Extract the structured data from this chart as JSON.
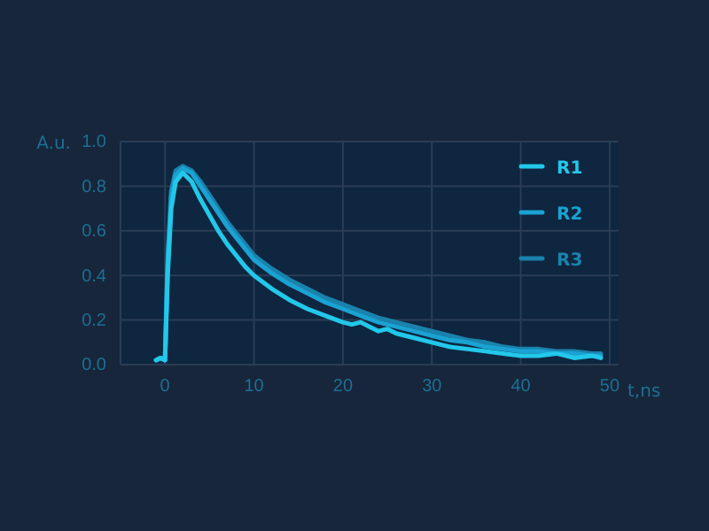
{
  "chart_data": {
    "type": "line",
    "xlabel": "t,ns",
    "ylabel": "A.u.",
    "xlim": [
      -5,
      51
    ],
    "ylim": [
      0,
      1
    ],
    "xticks": [
      0,
      10,
      20,
      30,
      40,
      50
    ],
    "yticks": [
      {
        "value": 0,
        "label": "0.0"
      },
      {
        "value": 0.2,
        "label": "0.2"
      },
      {
        "value": 0.4,
        "label": "0.4"
      },
      {
        "value": 0.6,
        "label": "0.6"
      },
      {
        "value": 0.8,
        "label": "0.8"
      },
      {
        "value": 1,
        "label": "1.0"
      }
    ],
    "grid": true,
    "legend": "top right",
    "line_style": "solid",
    "series": [
      {
        "name": "R1",
        "color": "#22c8ea",
        "x": [
          -1,
          -0.5,
          0,
          0.3,
          0.7,
          1.2,
          2,
          3,
          4,
          5,
          6,
          7,
          8,
          9,
          10,
          12,
          14,
          16,
          18,
          20,
          21,
          22,
          23,
          24,
          25,
          26,
          28,
          30,
          32,
          34,
          36,
          38,
          40,
          42,
          44,
          46,
          48,
          49
        ],
        "values": [
          0.02,
          0.03,
          0.02,
          0.4,
          0.7,
          0.82,
          0.86,
          0.82,
          0.74,
          0.67,
          0.6,
          0.54,
          0.49,
          0.44,
          0.4,
          0.34,
          0.29,
          0.25,
          0.22,
          0.19,
          0.18,
          0.19,
          0.17,
          0.15,
          0.16,
          0.14,
          0.12,
          0.1,
          0.08,
          0.07,
          0.06,
          0.05,
          0.04,
          0.04,
          0.05,
          0.03,
          0.04,
          0.03
        ]
      },
      {
        "name": "R2",
        "color": "#1aa2d2",
        "x": [
          -1,
          -0.5,
          0,
          0.3,
          0.7,
          1.2,
          2,
          3,
          4,
          5,
          6,
          7,
          8,
          9,
          10,
          12,
          14,
          16,
          18,
          20,
          22,
          24,
          26,
          28,
          30,
          32,
          34,
          36,
          38,
          40,
          42,
          44,
          46,
          48,
          49
        ],
        "values": [
          0.02,
          0.03,
          0.02,
          0.45,
          0.75,
          0.85,
          0.88,
          0.86,
          0.8,
          0.74,
          0.68,
          0.62,
          0.57,
          0.52,
          0.47,
          0.41,
          0.36,
          0.32,
          0.28,
          0.25,
          0.22,
          0.19,
          0.17,
          0.15,
          0.13,
          0.11,
          0.1,
          0.08,
          0.07,
          0.06,
          0.06,
          0.05,
          0.05,
          0.04,
          0.04
        ]
      },
      {
        "name": "R3",
        "color": "#1a82ac",
        "x": [
          -1,
          -0.5,
          0,
          0.3,
          0.7,
          1.2,
          2,
          3,
          4,
          5,
          6,
          7,
          8,
          9,
          10,
          12,
          14,
          16,
          18,
          20,
          22,
          24,
          26,
          28,
          30,
          32,
          34,
          36,
          38,
          40,
          42,
          44,
          46,
          48,
          49
        ],
        "values": [
          0.02,
          0.03,
          0.02,
          0.48,
          0.78,
          0.87,
          0.89,
          0.87,
          0.82,
          0.76,
          0.7,
          0.64,
          0.59,
          0.54,
          0.49,
          0.43,
          0.38,
          0.34,
          0.3,
          0.27,
          0.24,
          0.21,
          0.19,
          0.17,
          0.15,
          0.13,
          0.11,
          0.1,
          0.08,
          0.07,
          0.07,
          0.06,
          0.06,
          0.05,
          0.05
        ]
      }
    ]
  }
}
